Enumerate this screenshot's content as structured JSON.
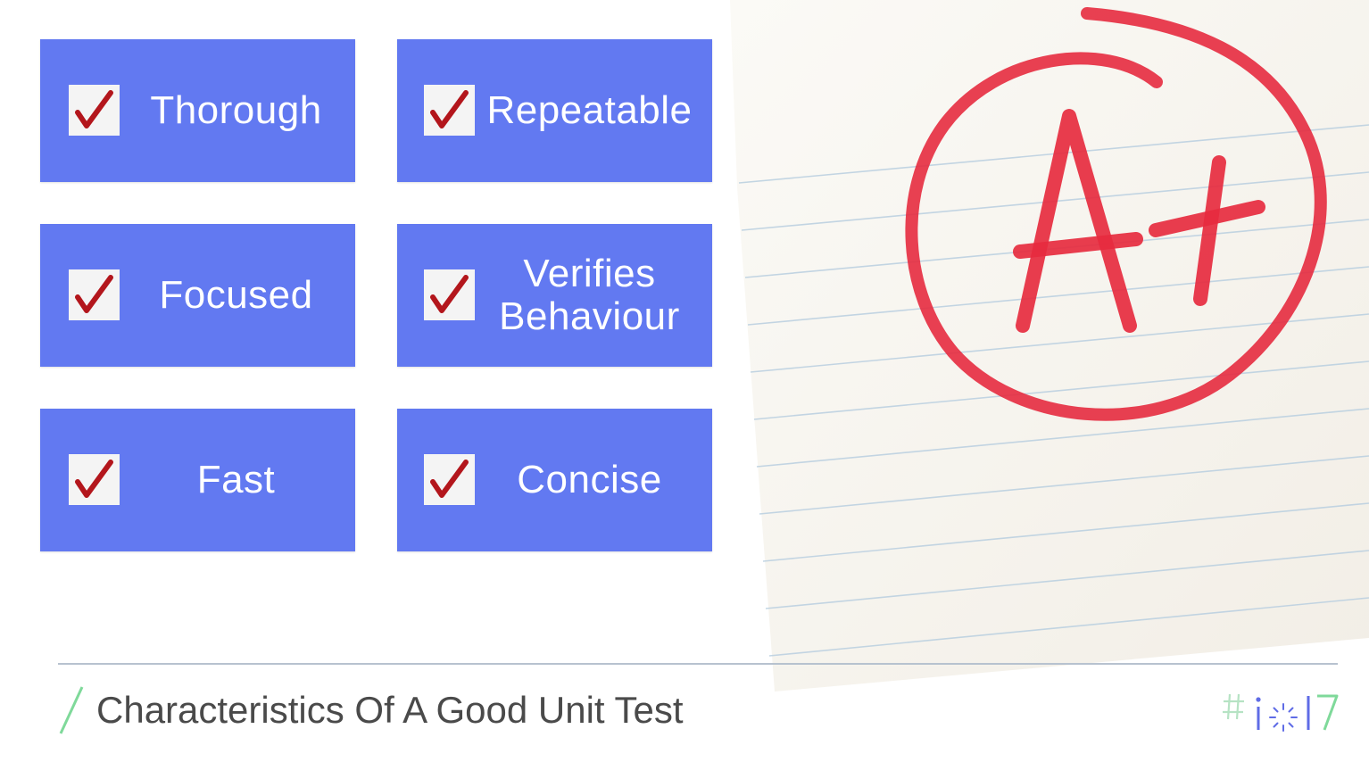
{
  "cards": [
    {
      "label": "Thorough"
    },
    {
      "label": "Repeatable"
    },
    {
      "label": "Focused"
    },
    {
      "label": "Verifies\nBehaviour"
    },
    {
      "label": "Fast"
    },
    {
      "label": "Concise"
    }
  ],
  "image": {
    "grade_text": "A+",
    "grade_color": "#e62b3f"
  },
  "footer": {
    "title": "Characteristics Of A Good Unit Test"
  },
  "logo": {
    "text": "#io17"
  },
  "colors": {
    "card": "#6279f1",
    "checkmark": "#b3161c",
    "accent_slash": "#7fd99a"
  }
}
